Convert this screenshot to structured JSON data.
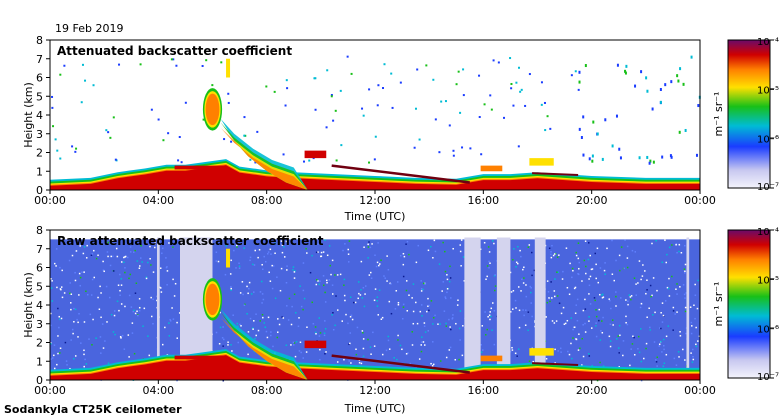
{
  "date": "19 Feb 2019",
  "footer": "Sodankyla CT25K ceilometer",
  "colors": {
    "low": "#d8d8f4",
    "blue": "#1a3cff",
    "cyan": "#00bcd4",
    "green": "#18c018",
    "yellow": "#ffe000",
    "orange": "#ff8000",
    "red": "#d00000",
    "darkred": "#700010"
  },
  "chart_data": [
    {
      "type": "heatmap",
      "title": "Attenuated backscatter coefficient",
      "xlabel": "Time (UTC)",
      "ylabel": "Height (km)",
      "xticks": [
        "00:00",
        "04:00",
        "08:00",
        "12:00",
        "16:00",
        "20:00",
        "00:00"
      ],
      "yticks": [
        "0",
        "1",
        "2",
        "3",
        "4",
        "5",
        "6",
        "7",
        "8"
      ],
      "ylim": [
        0,
        8
      ],
      "colorbar": {
        "label": "m⁻¹ sr⁻¹",
        "ticks": [
          "10⁻⁴",
          "10⁻⁵",
          "10⁻⁶",
          "10⁻⁷"
        ]
      }
    },
    {
      "type": "heatmap",
      "title": "Raw attenuated backscatter coefficient",
      "xlabel": "Time (UTC)",
      "ylabel": "Height (km)",
      "xticks": [
        "00:00",
        "04:00",
        "08:00",
        "12:00",
        "16:00",
        "20:00",
        "00:00"
      ],
      "yticks": [
        "0",
        "1",
        "2",
        "3",
        "4",
        "5",
        "6",
        "7",
        "8"
      ],
      "ylim": [
        0,
        8
      ],
      "colorbar": {
        "label": "m⁻¹ sr⁻¹",
        "ticks": [
          "10⁻⁴",
          "10⁻⁵",
          "10⁻⁶",
          "10⁻⁷"
        ]
      }
    }
  ]
}
